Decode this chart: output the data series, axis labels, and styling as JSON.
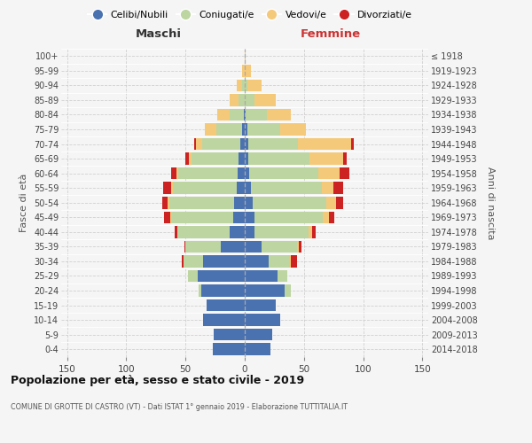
{
  "age_groups": [
    "0-4",
    "5-9",
    "10-14",
    "15-19",
    "20-24",
    "25-29",
    "30-34",
    "35-39",
    "40-44",
    "45-49",
    "50-54",
    "55-59",
    "60-64",
    "65-69",
    "70-74",
    "75-79",
    "80-84",
    "85-89",
    "90-94",
    "95-99",
    "100+"
  ],
  "birth_years": [
    "2014-2018",
    "2009-2013",
    "2004-2008",
    "1999-2003",
    "1994-1998",
    "1989-1993",
    "1984-1988",
    "1979-1983",
    "1974-1978",
    "1969-1973",
    "1964-1968",
    "1959-1963",
    "1954-1958",
    "1949-1953",
    "1944-1948",
    "1939-1943",
    "1934-1938",
    "1929-1933",
    "1924-1928",
    "1919-1923",
    "≤ 1918"
  ],
  "colors": {
    "celibi": "#4a72b0",
    "coniugati": "#bdd5a0",
    "vedovi": "#f5c97a",
    "divorziati": "#cc2222"
  },
  "males": {
    "celibi": [
      27,
      26,
      35,
      32,
      37,
      40,
      35,
      20,
      13,
      10,
      9,
      7,
      6,
      5,
      4,
      2,
      1,
      0,
      0,
      0,
      0
    ],
    "coniugati": [
      0,
      0,
      0,
      0,
      2,
      8,
      17,
      30,
      44,
      52,
      55,
      54,
      50,
      40,
      32,
      22,
      12,
      5,
      2,
      0,
      0
    ],
    "vedovi": [
      0,
      0,
      0,
      0,
      0,
      0,
      0,
      0,
      0,
      1,
      1,
      1,
      2,
      2,
      5,
      10,
      10,
      8,
      5,
      2,
      0
    ],
    "divorziati": [
      0,
      0,
      0,
      0,
      0,
      0,
      1,
      1,
      2,
      5,
      5,
      7,
      4,
      3,
      2,
      0,
      0,
      0,
      0,
      0,
      0
    ]
  },
  "females": {
    "celibi": [
      22,
      23,
      30,
      26,
      34,
      28,
      20,
      14,
      8,
      8,
      7,
      5,
      4,
      3,
      3,
      2,
      1,
      0,
      0,
      0,
      0
    ],
    "coniugati": [
      0,
      0,
      0,
      0,
      5,
      8,
      18,
      30,
      46,
      58,
      62,
      60,
      58,
      52,
      42,
      28,
      18,
      8,
      2,
      0,
      0
    ],
    "vedovi": [
      0,
      0,
      0,
      0,
      0,
      0,
      1,
      2,
      3,
      5,
      8,
      10,
      18,
      28,
      45,
      22,
      20,
      18,
      12,
      5,
      1
    ],
    "divorziati": [
      0,
      0,
      0,
      0,
      0,
      0,
      5,
      2,
      3,
      5,
      6,
      8,
      8,
      3,
      2,
      0,
      0,
      0,
      0,
      0,
      0
    ]
  },
  "title": "Popolazione per età, sesso e stato civile - 2019",
  "subtitle": "COMUNE DI GROTTE DI CASTRO (VT) - Dati ISTAT 1° gennaio 2019 - Elaborazione TUTTITALIA.IT",
  "xlabel_left": "Maschi",
  "xlabel_right": "Femmine",
  "ylabel_left": "Fasce di età",
  "ylabel_right": "Anni di nascita",
  "xlim": 155,
  "xticks": [
    -150,
    -100,
    -50,
    0,
    50,
    100,
    150
  ],
  "legend_labels": [
    "Celibi/Nubili",
    "Coniugati/e",
    "Vedovi/e",
    "Divorziati/e"
  ],
  "background_color": "#f5f5f5",
  "grid_color": "#cccccc"
}
